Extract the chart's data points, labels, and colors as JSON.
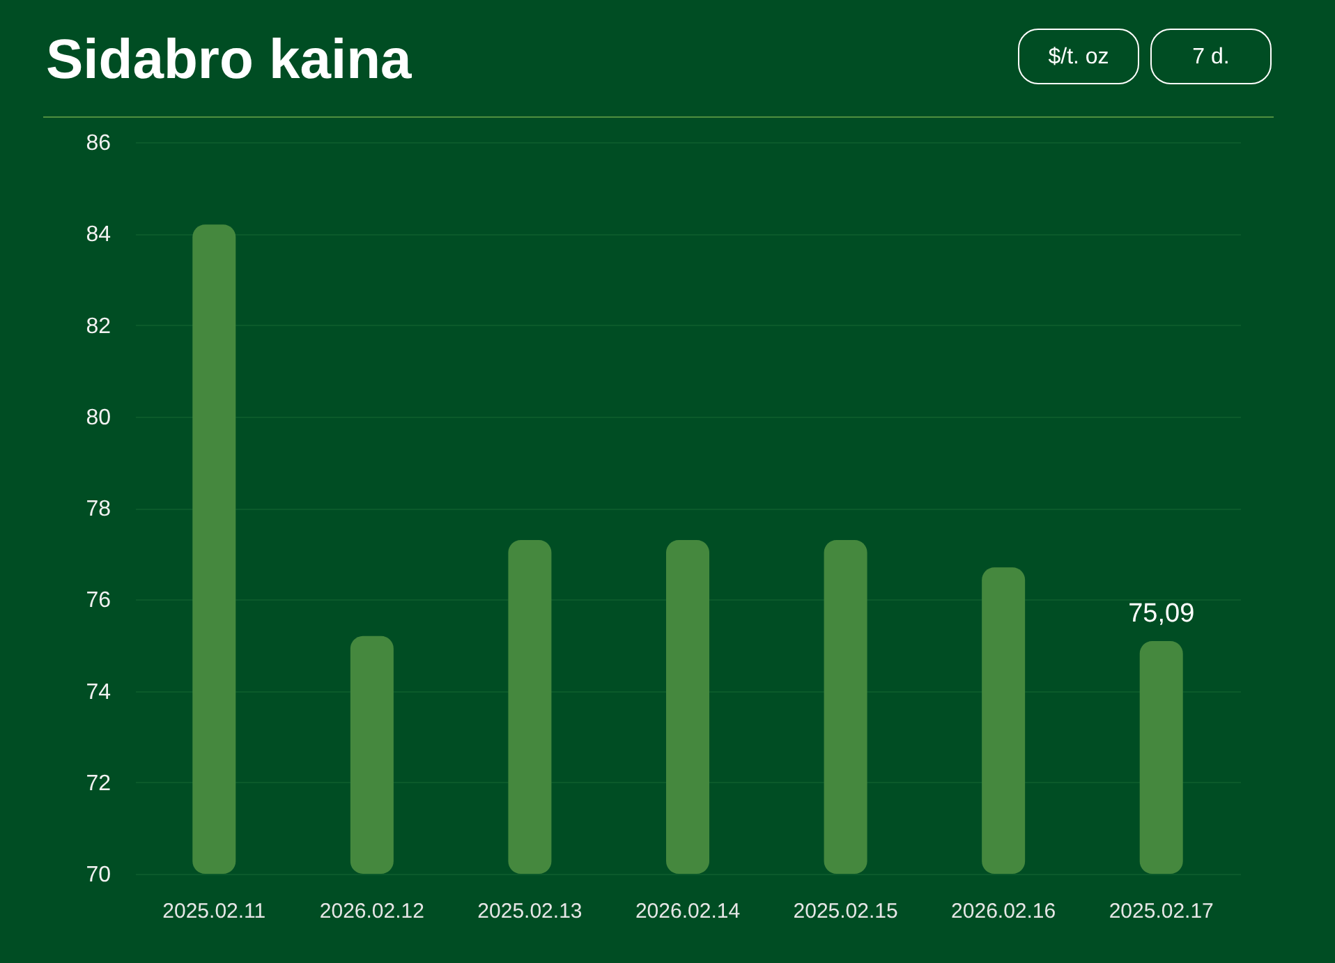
{
  "chart_data": {
    "type": "bar",
    "title": "Sidabro kaina",
    "annotations": [
      "$/t. oz",
      "7 d."
    ],
    "categories": [
      "2025.02.11",
      "2026.02.12",
      "2025.02.13",
      "2026.02.14",
      "2025.02.15",
      "2026.02.16",
      "2025.02.17"
    ],
    "values": [
      84.2,
      75.2,
      77.3,
      77.3,
      77.3,
      76.7,
      75.09
    ],
    "value_labels": [
      null,
      null,
      null,
      null,
      null,
      null,
      "75,09"
    ],
    "color": "#45883e",
    "ylim": [
      70,
      86
    ],
    "yticks": [
      70,
      72,
      74,
      76,
      78,
      80,
      82,
      84,
      86
    ],
    "grid": "y"
  }
}
